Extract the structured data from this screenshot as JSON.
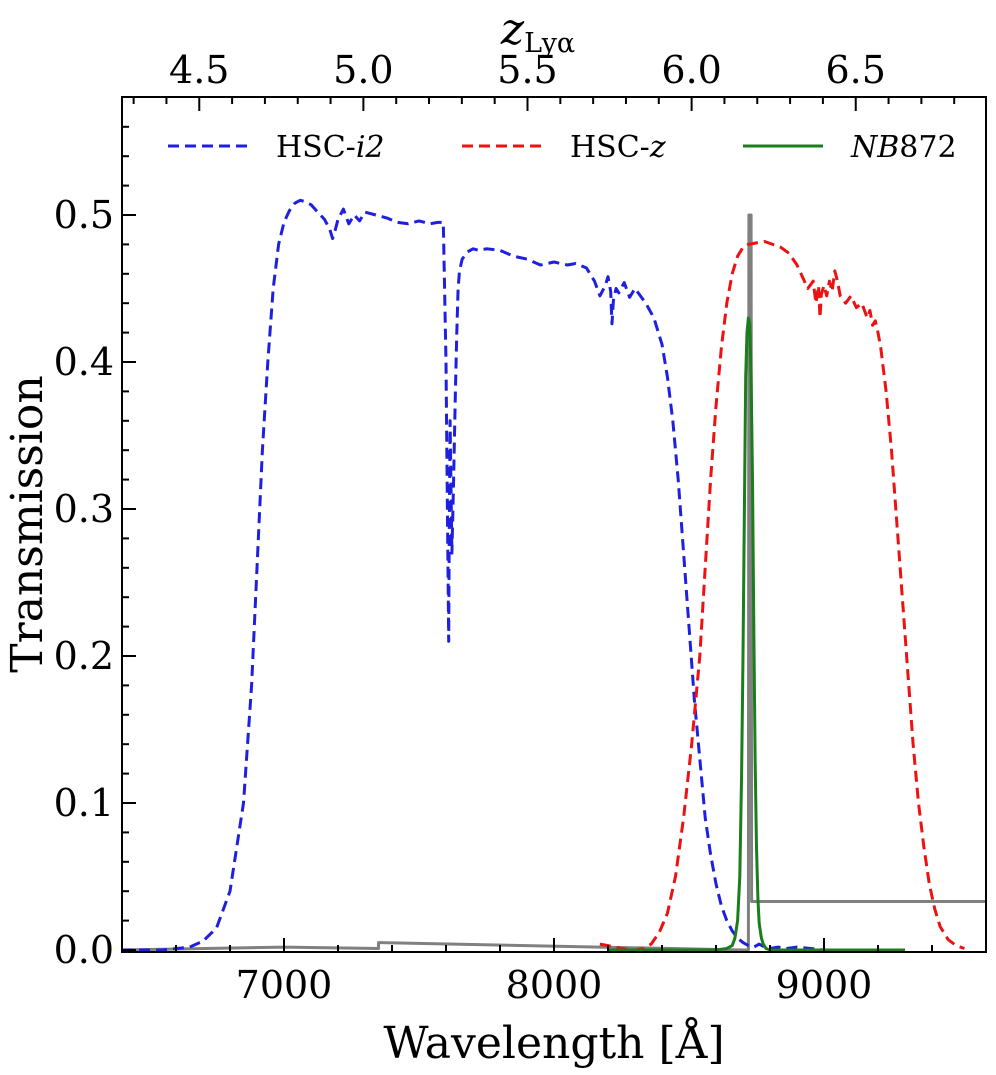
{
  "chart_data": {
    "type": "line",
    "xlabel": "Wavelength [Å]",
    "ylabel": "Transmission",
    "top_xlabel": {
      "base": "z",
      "subscript": "Lyα"
    },
    "xlim": [
      6400,
      9600
    ],
    "ylim": [
      0.0,
      0.58
    ],
    "x_ticks": [
      7000,
      8000,
      9000
    ],
    "x_tick_labels": [
      "7000",
      "8000",
      "9000"
    ],
    "y_ticks": [
      0.0,
      0.1,
      0.2,
      0.3,
      0.4,
      0.5
    ],
    "y_tick_labels": [
      "0.0",
      "0.1",
      "0.2",
      "0.3",
      "0.4",
      "0.5"
    ],
    "top_ticks": [
      4.5,
      5.0,
      5.5,
      6.0,
      6.5
    ],
    "top_tick_labels": [
      "4.5",
      "5.0",
      "5.5",
      "6.0",
      "6.5"
    ],
    "lya_rest_wavelength": 1215.67,
    "legend_placement": "top",
    "grid": false,
    "series": [
      {
        "name": "HSC-i2",
        "legend": {
          "prefix": "HSC-",
          "italic": "i2",
          "suffix": ""
        },
        "color": "#1f1fe0",
        "style": "dashed",
        "x": [
          6400,
          6550,
          6650,
          6700,
          6750,
          6800,
          6850,
          6880,
          6900,
          6920,
          6940,
          6960,
          6980,
          7000,
          7020,
          7040,
          7060,
          7080,
          7100,
          7120,
          7150,
          7170,
          7180,
          7190,
          7200,
          7220,
          7240,
          7260,
          7280,
          7300,
          7340,
          7380,
          7420,
          7460,
          7500,
          7540,
          7570,
          7590,
          7600,
          7605,
          7610,
          7612,
          7615,
          7618,
          7622,
          7628,
          7635,
          7640,
          7645,
          7650,
          7660,
          7680,
          7700,
          7720,
          7750,
          7800,
          7850,
          7900,
          7950,
          8000,
          8050,
          8080,
          8120,
          8150,
          8170,
          8190,
          8200,
          8210,
          8215,
          8220,
          8230,
          8240,
          8260,
          8280,
          8300,
          8320,
          8340,
          8370,
          8400,
          8420,
          8440,
          8460,
          8480,
          8500,
          8520,
          8540,
          8560,
          8580,
          8600,
          8620,
          8640,
          8660,
          8680,
          8700,
          8720,
          8740,
          8760,
          8780,
          8800,
          8830,
          8860,
          8900,
          8950,
          9000
        ],
        "y": [
          0.0,
          0.0,
          0.002,
          0.006,
          0.015,
          0.04,
          0.1,
          0.18,
          0.26,
          0.34,
          0.4,
          0.45,
          0.48,
          0.495,
          0.503,
          0.508,
          0.51,
          0.509,
          0.507,
          0.503,
          0.497,
          0.49,
          0.484,
          0.49,
          0.497,
          0.504,
          0.494,
          0.5,
          0.496,
          0.502,
          0.5,
          0.498,
          0.495,
          0.494,
          0.496,
          0.494,
          0.495,
          0.495,
          0.4,
          0.3,
          0.21,
          0.28,
          0.36,
          0.32,
          0.27,
          0.32,
          0.38,
          0.42,
          0.45,
          0.462,
          0.47,
          0.475,
          0.477,
          0.476,
          0.477,
          0.476,
          0.472,
          0.47,
          0.466,
          0.468,
          0.466,
          0.467,
          0.464,
          0.455,
          0.445,
          0.452,
          0.458,
          0.448,
          0.426,
          0.442,
          0.45,
          0.447,
          0.454,
          0.444,
          0.45,
          0.445,
          0.44,
          0.43,
          0.412,
          0.39,
          0.36,
          0.32,
          0.27,
          0.22,
          0.17,
          0.13,
          0.09,
          0.065,
          0.045,
          0.03,
          0.02,
          0.013,
          0.008,
          0.005,
          0.003,
          0.002,
          0.004,
          0.002,
          0.001,
          0.002,
          0.001,
          0.002,
          0.001,
          0.0
        ]
      },
      {
        "name": "HSC-z",
        "legend": {
          "prefix": "HSC-",
          "italic": "z",
          "suffix": ""
        },
        "color": "#ee1111",
        "style": "dashed",
        "x": [
          8170,
          8200,
          8250,
          8300,
          8330,
          8360,
          8390,
          8420,
          8450,
          8480,
          8510,
          8540,
          8560,
          8580,
          8600,
          8620,
          8640,
          8660,
          8680,
          8700,
          8720,
          8750,
          8780,
          8810,
          8840,
          8870,
          8900,
          8920,
          8940,
          8960,
          8970,
          8980,
          8985,
          8990,
          9000,
          9010,
          9020,
          9030,
          9040,
          9050,
          9060,
          9080,
          9100,
          9120,
          9140,
          9160,
          9170,
          9180,
          9190,
          9200,
          9210,
          9220,
          9230,
          9250,
          9270,
          9290,
          9310,
          9330,
          9350,
          9370,
          9390,
          9410,
          9430,
          9460,
          9490,
          9520
        ],
        "y": [
          0.004,
          0.003,
          0.001,
          0.0,
          0.001,
          0.004,
          0.012,
          0.025,
          0.05,
          0.09,
          0.14,
          0.2,
          0.26,
          0.32,
          0.37,
          0.41,
          0.44,
          0.46,
          0.472,
          0.478,
          0.48,
          0.481,
          0.482,
          0.48,
          0.478,
          0.474,
          0.466,
          0.458,
          0.45,
          0.455,
          0.44,
          0.452,
          0.43,
          0.446,
          0.452,
          0.445,
          0.455,
          0.448,
          0.462,
          0.455,
          0.445,
          0.44,
          0.445,
          0.437,
          0.44,
          0.43,
          0.435,
          0.425,
          0.428,
          0.42,
          0.41,
          0.395,
          0.38,
          0.34,
          0.29,
          0.24,
          0.19,
          0.14,
          0.1,
          0.07,
          0.045,
          0.028,
          0.016,
          0.007,
          0.003,
          0.001
        ]
      },
      {
        "name": "NB872",
        "legend": {
          "prefix": "",
          "italic": "NB",
          "suffix": "872"
        },
        "color": "#1b7d1b",
        "style": "solid",
        "x": [
          8200,
          8500,
          8600,
          8640,
          8660,
          8670,
          8680,
          8688,
          8695,
          8700,
          8705,
          8710,
          8715,
          8720,
          8725,
          8730,
          8735,
          8740,
          8745,
          8750,
          8755,
          8760,
          8768,
          8775,
          8785,
          8800,
          8850,
          9000,
          9300
        ],
        "y": [
          0.0,
          0.0,
          0.0,
          0.001,
          0.003,
          0.008,
          0.02,
          0.05,
          0.12,
          0.2,
          0.3,
          0.39,
          0.42,
          0.43,
          0.425,
          0.39,
          0.32,
          0.22,
          0.13,
          0.07,
          0.035,
          0.018,
          0.008,
          0.004,
          0.001,
          0.0,
          0.0,
          0.0,
          0.0
        ]
      },
      {
        "color": "#808080",
        "style": "solid",
        "x": [
          6400,
          7000,
          7350,
          7350,
          8700,
          8720,
          8722,
          8730,
          8732,
          9600
        ],
        "y": [
          0.0,
          0.002,
          0.001,
          0.005,
          0.0,
          0.0,
          0.5,
          0.5,
          0.033,
          0.033
        ]
      }
    ]
  }
}
